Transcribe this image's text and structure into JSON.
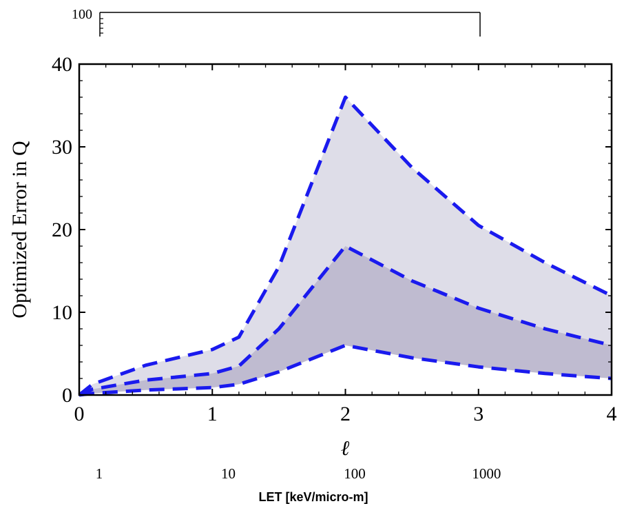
{
  "chart_data": {
    "type": "area",
    "xlabel": "ℓ",
    "ylabel": "Optimized Error in Q",
    "xlim": [
      0,
      4
    ],
    "ylim": [
      0,
      40
    ],
    "x_ticks": [
      "0",
      "1",
      "2",
      "3",
      "4"
    ],
    "y_ticks": [
      "0",
      "10",
      "20",
      "30",
      "40"
    ],
    "grid": false,
    "legend": "none",
    "series": [
      {
        "color": "#1a1aee",
        "style": "dashed",
        "fill": "#dedde8",
        "points": [
          [
            0.0,
            0.0
          ],
          [
            0.1,
            1.3
          ],
          [
            0.5,
            3.6
          ],
          [
            1.0,
            5.5
          ],
          [
            1.2,
            7.0
          ],
          [
            1.5,
            15.5
          ],
          [
            2.0,
            36.0
          ],
          [
            2.5,
            27.5
          ],
          [
            3.0,
            20.5
          ],
          [
            3.5,
            16.0
          ],
          [
            4.0,
            12.0
          ]
        ]
      },
      {
        "color": "#1a1aee",
        "style": "dashed",
        "fill": "#bfbbd0",
        "points": [
          [
            0.0,
            0.0
          ],
          [
            0.1,
            0.7
          ],
          [
            0.5,
            1.8
          ],
          [
            1.0,
            2.6
          ],
          [
            1.2,
            3.5
          ],
          [
            1.5,
            8.0
          ],
          [
            2.0,
            18.0
          ],
          [
            2.5,
            13.8
          ],
          [
            3.0,
            10.5
          ],
          [
            3.5,
            8.0
          ],
          [
            4.0,
            6.0
          ]
        ]
      },
      {
        "color": "#1a1aee",
        "style": "dashed",
        "fill": "#ffffff",
        "points": [
          [
            0.0,
            0.0
          ],
          [
            0.1,
            0.2
          ],
          [
            0.5,
            0.6
          ],
          [
            1.0,
            0.9
          ],
          [
            1.2,
            1.3
          ],
          [
            1.5,
            2.8
          ],
          [
            2.0,
            6.0
          ],
          [
            2.5,
            4.5
          ],
          [
            3.0,
            3.4
          ],
          [
            3.5,
            2.6
          ],
          [
            4.0,
            2.0
          ]
        ]
      }
    ],
    "secondary_axes": {
      "top": {
        "label": "100"
      },
      "bottom": {
        "xlabel": "LET [keV/micro-m]",
        "ticks": [
          {
            "label": "1",
            "at_l": 0.15
          },
          {
            "label": "10",
            "at_l": 1.12
          },
          {
            "label": "100",
            "at_l": 2.07
          },
          {
            "label": "1000",
            "at_l": 3.06
          }
        ]
      }
    }
  }
}
